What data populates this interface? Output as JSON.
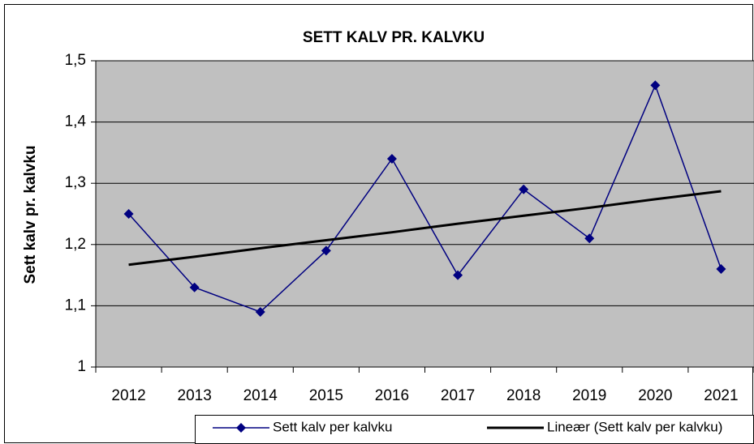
{
  "chart_data": {
    "type": "line",
    "title": "SETT KALV PR. KALVKU",
    "ylabel": "Sett kalv pr. kalvku",
    "categories": [
      "2012",
      "2013",
      "2014",
      "2015",
      "2016",
      "2017",
      "2018",
      "2019",
      "2020",
      "2021"
    ],
    "series": [
      {
        "name": "Sett kalv per kalvku",
        "color": "#000080",
        "marker": "diamond",
        "values": [
          1.25,
          1.13,
          1.09,
          1.19,
          1.34,
          1.15,
          1.29,
          1.21,
          1.46,
          1.16
        ]
      },
      {
        "name": "Lineær (Sett kalv per kalvku)",
        "color": "#000000",
        "marker": "none",
        "values": [
          1.167,
          1.18,
          1.194,
          1.207,
          1.22,
          1.234,
          1.247,
          1.26,
          1.274,
          1.287
        ]
      }
    ],
    "ylim": [
      1,
      1.5
    ],
    "yticks": [
      1,
      {
        "value": 1.1,
        "label": "1,1"
      },
      {
        "value": 1.2,
        "label": "1,2"
      },
      {
        "value": 1.3,
        "label": "1,3"
      },
      {
        "value": 1.4,
        "label": "1,4"
      },
      {
        "value": 1.5,
        "label": "1,5"
      }
    ],
    "grid": true,
    "legend": "bottom"
  }
}
